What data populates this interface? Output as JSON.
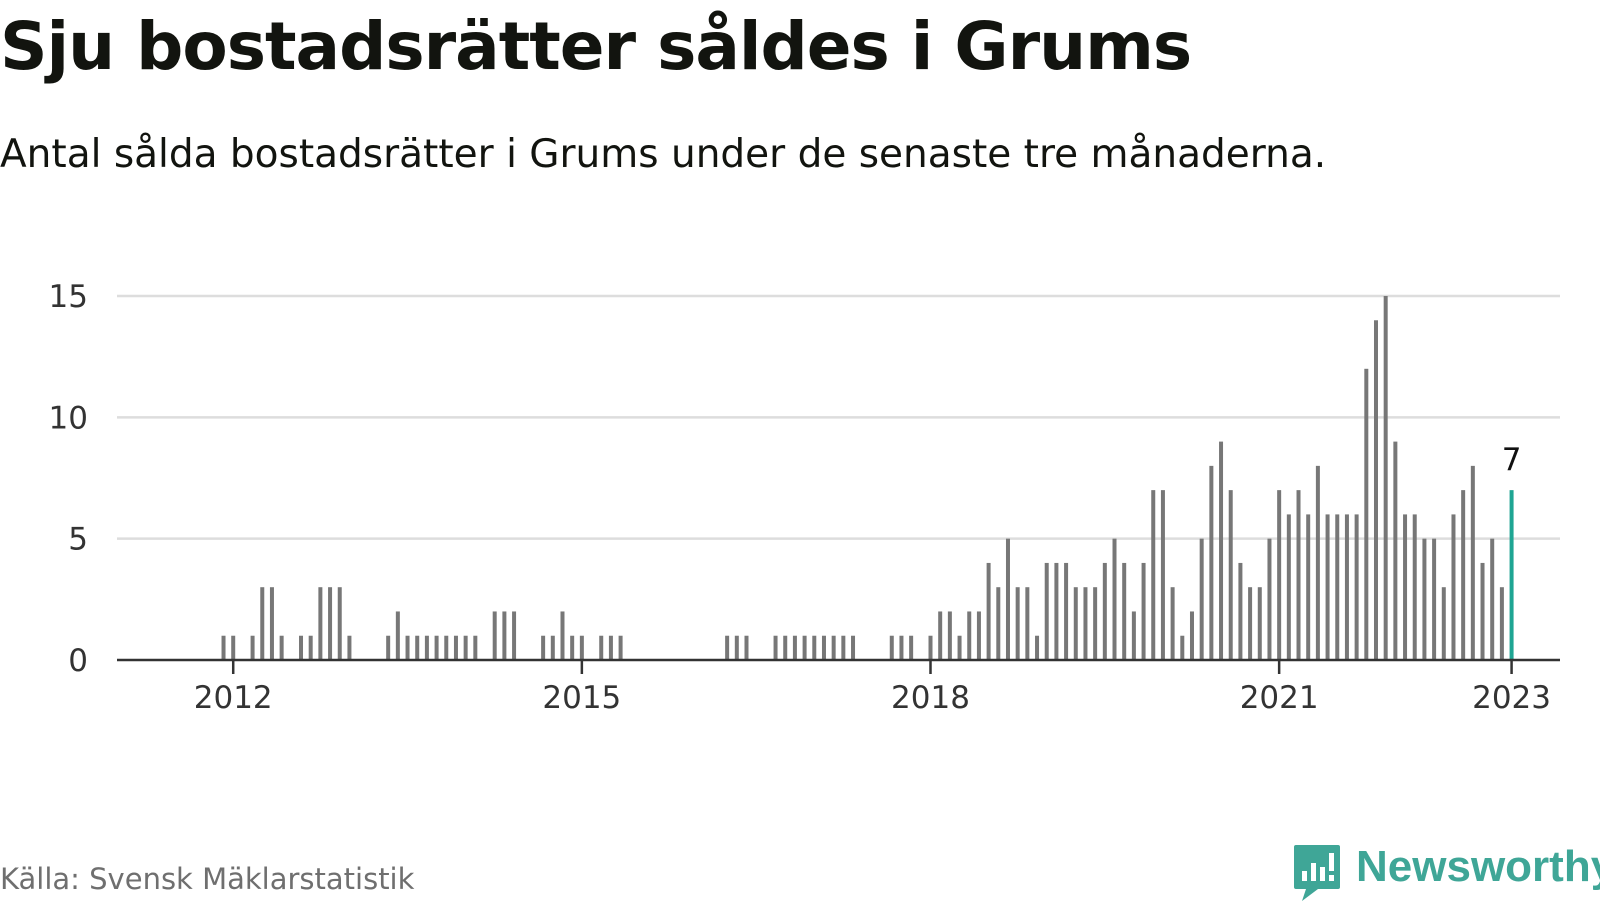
{
  "title": "Sju bostadsrätter såldes i Grums",
  "subtitle": "Antal sålda bostadsrätter i Grums under de senaste tre månaderna.",
  "source": "Källa: Svensk Mäklarstatistik",
  "brand": {
    "name": "Newsworthy",
    "icon": "newsworthy-logo-icon"
  },
  "colors": {
    "bar": "#777777",
    "highlight": "#1fa593",
    "grid": "#dddddd",
    "axis": "#333333",
    "brand": "#3fa697"
  },
  "chart_data": {
    "type": "bar",
    "title": "Sju bostadsrätter såldes i Grums",
    "subtitle": "Antal sålda bostadsrätter i Grums under de senaste tre månaderna.",
    "x_type": "time",
    "x_start": "2011-01",
    "x_end": "2023-06",
    "ylim": [
      0,
      15
    ],
    "yticks": [
      0,
      5,
      10,
      15
    ],
    "xticks": [
      {
        "label": "2012",
        "date": "2012-01"
      },
      {
        "label": "2015",
        "date": "2015-01"
      },
      {
        "label": "2018",
        "date": "2018-01"
      },
      {
        "label": "2021",
        "date": "2021-01"
      },
      {
        "label": "2023",
        "date": "2023-01"
      }
    ],
    "grid": true,
    "highlight": {
      "date": "2023-01",
      "value": 7,
      "label": "7"
    },
    "x": [
      "2011-12",
      "2012-01",
      "2012-03",
      "2012-04",
      "2012-05",
      "2012-06",
      "2012-08",
      "2012-09",
      "2012-10",
      "2012-11",
      "2012-12",
      "2013-01",
      "2013-05",
      "2013-06",
      "2013-07",
      "2013-08",
      "2013-09",
      "2013-10",
      "2013-11",
      "2013-12",
      "2014-01",
      "2014-02",
      "2014-04",
      "2014-05",
      "2014-06",
      "2014-09",
      "2014-10",
      "2014-11",
      "2014-12",
      "2015-01",
      "2015-03",
      "2015-04",
      "2015-05",
      "2016-04",
      "2016-05",
      "2016-06",
      "2016-09",
      "2016-10",
      "2016-11",
      "2016-12",
      "2017-01",
      "2017-02",
      "2017-03",
      "2017-04",
      "2017-05",
      "2017-09",
      "2017-10",
      "2017-11",
      "2018-01",
      "2018-02",
      "2018-03",
      "2018-04",
      "2018-05",
      "2018-06",
      "2018-07",
      "2018-08",
      "2018-09",
      "2018-10",
      "2018-11",
      "2018-12",
      "2019-01",
      "2019-02",
      "2019-03",
      "2019-04",
      "2019-05",
      "2019-06",
      "2019-07",
      "2019-08",
      "2019-09",
      "2019-10",
      "2019-11",
      "2019-12",
      "2020-01",
      "2020-02",
      "2020-03",
      "2020-04",
      "2020-05",
      "2020-06",
      "2020-07",
      "2020-08",
      "2020-09",
      "2020-10",
      "2020-11",
      "2020-12",
      "2021-01",
      "2021-02",
      "2021-03",
      "2021-04",
      "2021-05",
      "2021-06",
      "2021-07",
      "2021-08",
      "2021-09",
      "2021-10",
      "2021-11",
      "2021-12",
      "2022-01",
      "2022-02",
      "2022-03",
      "2022-04",
      "2022-05",
      "2022-06",
      "2022-07",
      "2022-08",
      "2022-09",
      "2022-10",
      "2022-11",
      "2022-12",
      "2023-01"
    ],
    "values": [
      1,
      1,
      1,
      3,
      3,
      1,
      1,
      1,
      3,
      3,
      3,
      1,
      1,
      2,
      1,
      1,
      1,
      1,
      1,
      1,
      1,
      1,
      2,
      2,
      2,
      1,
      1,
      2,
      1,
      1,
      1,
      1,
      1,
      1,
      1,
      1,
      1,
      1,
      1,
      1,
      1,
      1,
      1,
      1,
      1,
      1,
      1,
      1,
      1,
      2,
      2,
      1,
      2,
      2,
      4,
      3,
      5,
      3,
      3,
      1,
      4,
      4,
      4,
      3,
      3,
      3,
      4,
      5,
      4,
      2,
      4,
      7,
      7,
      3,
      1,
      2,
      5,
      8,
      9,
      7,
      4,
      3,
      3,
      5,
      7,
      6,
      7,
      6,
      8,
      6,
      6,
      6,
      6,
      12,
      14,
      15,
      9,
      6,
      6,
      5,
      5,
      3,
      6,
      7,
      8,
      4,
      5,
      3,
      7
    ]
  }
}
